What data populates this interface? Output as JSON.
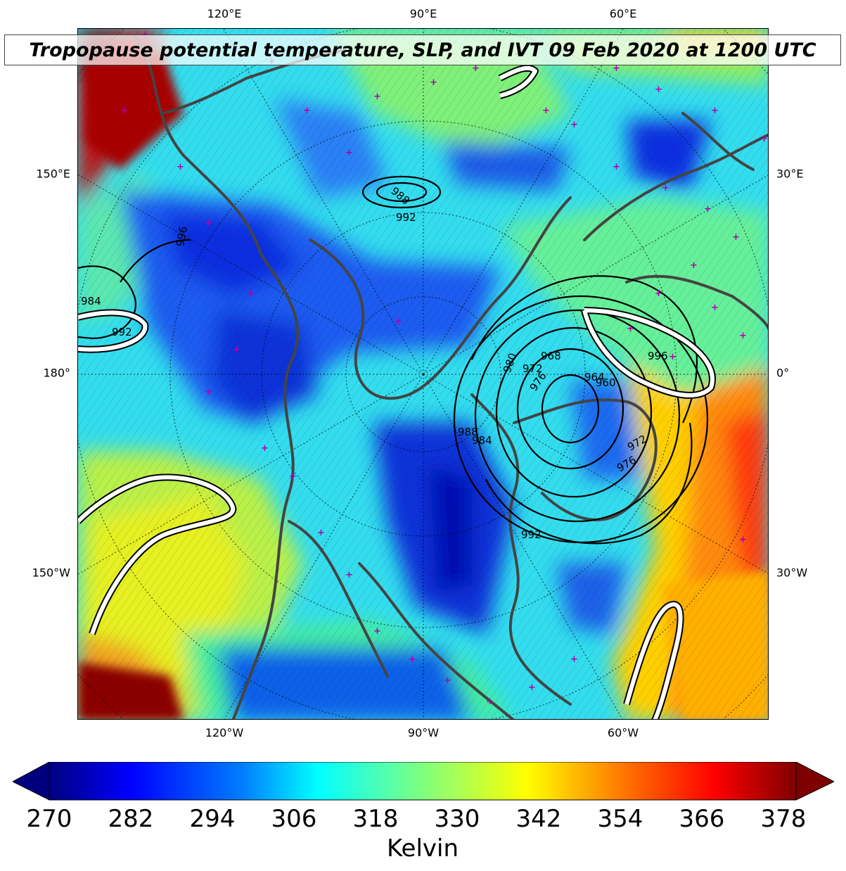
{
  "title": "Tropopause potential temperature, SLP, and IVT 09 Feb 2020 at 1200 UTC",
  "map": {
    "projection": "north-polar-stereographic",
    "field": "tropopause potential temperature",
    "overlays": [
      "sea-level pressure contours (black)",
      "IVT contours (white)",
      "coastlines (gray)",
      "station markers (magenta)"
    ],
    "graticule": "dotted",
    "lon_labels_top": [
      "120°E",
      "90°E",
      "60°E"
    ],
    "lon_labels_bottom": [
      "120°W",
      "90°W",
      "60°W"
    ],
    "lon_labels_left": [
      "150°E",
      "180°",
      "150°W"
    ],
    "lon_labels_right": [
      "30°E",
      "0°",
      "30°W"
    ],
    "slp_labels": [
      "988",
      "992",
      "996",
      "984",
      "992",
      "980",
      "976",
      "972",
      "968",
      "964",
      "960",
      "972",
      "976",
      "984",
      "988",
      "992",
      "996"
    ]
  },
  "colorbar": {
    "colormap": "jet",
    "min": 270,
    "max": 378,
    "extend": "both",
    "ticks": [
      "270",
      "282",
      "294",
      "306",
      "318",
      "330",
      "342",
      "354",
      "366",
      "378"
    ],
    "label": "Kelvin",
    "colors": [
      "#00007f",
      "#0000ff",
      "#007fff",
      "#00ffff",
      "#7fff7f",
      "#ffff00",
      "#ff7f00",
      "#ff0000",
      "#7f0000"
    ]
  }
}
